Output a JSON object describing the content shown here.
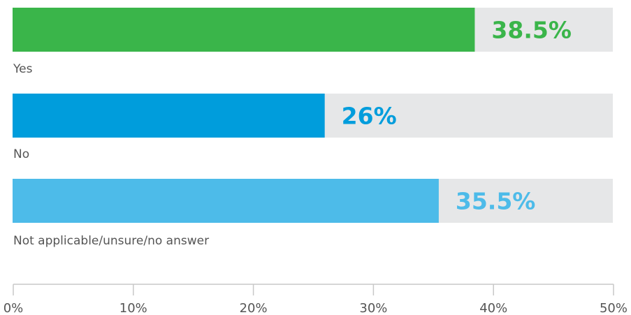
{
  "chart_data": {
    "type": "bar",
    "orientation": "horizontal",
    "categories": [
      "Yes",
      "No",
      "Not applicable/unsure/no answer"
    ],
    "values": [
      38.5,
      26,
      35.5
    ],
    "value_labels": [
      "38.5%",
      "26%",
      "35.5%"
    ],
    "colors": [
      "#3ab54a",
      "#009ddc",
      "#4dbbe9"
    ],
    "track_color": "#e6e7e8",
    "xlim": [
      0,
      50
    ],
    "ticks": [
      0,
      10,
      20,
      30,
      40,
      50
    ],
    "tick_labels": [
      "0%",
      "10%",
      "20%",
      "30%",
      "40%",
      "50%"
    ],
    "title": "",
    "xlabel": "",
    "ylabel": "",
    "grid": false,
    "legend": "none"
  }
}
